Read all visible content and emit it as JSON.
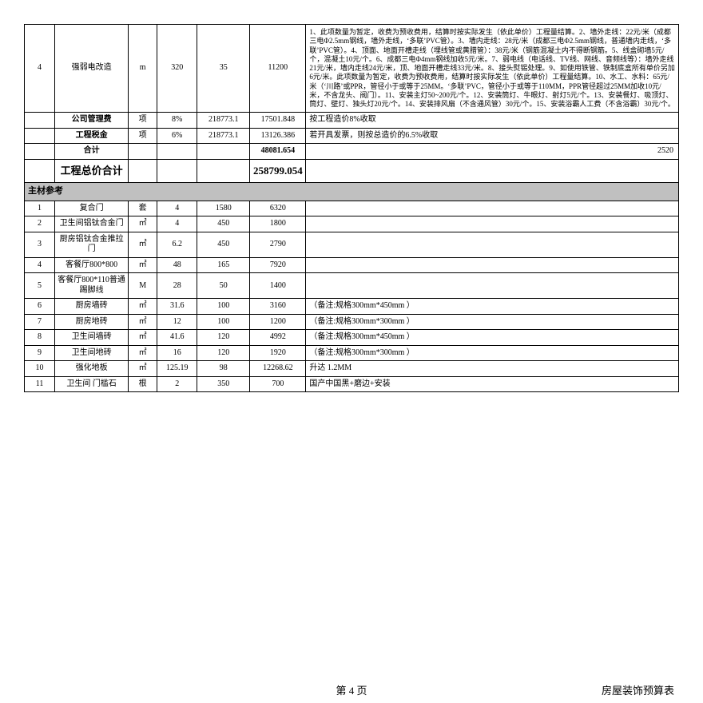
{
  "cols": [
    38,
    92,
    36,
    50,
    66,
    70,
    466
  ],
  "top_rows": [
    {
      "no": "4",
      "name": "强弱电改造",
      "unit": "m",
      "qty": "320",
      "price": "35",
      "amount": "11200",
      "remark": "1、此项数量为暂定，收费为预收费用，结算时按实际发生（依此单价）工程量结算。2、墙外走线：22元/米（成都三电Φ2.5mm钢线，墙外走线，‘多联’PVC管）。3、墙内走线：28元/米（成都三电Φ2.5mm钢线，普通墙内走线，‘多联’PVC管）。4、顶面、地面开槽走线（埋线管或黄腊管）：38元/米（钢筋混凝土内不得断钢筋。5、线盒砌墙5元/个，混凝土10元/个。6、成都三电Φ4mm钢线加收5元/米。7、弱电线（电话线、TV线、网线、音频线等）：墙外走线21元/米，墙内走线24元/米，顶、地面开槽走线33元/米。8、接头熨锡处理。9、如使用铁管、铁制底盒所有单价另加6元/米。此项数量为暂定，收费为预收费用，结算时按实际发生（依此单价）工程量结算。10、水工、水料：65元/米（‘川路’或PPR，管径小于或等于25MM。‘多联’PVC，管径小于或等于110MM，PPR管径超过25MM加收10元/米，不含龙头、阀门）。11、安装主灯50~200元/个。12、安装筒灯、牛眼灯、射灯5元/个。13、安装餐灯、吸顶灯、筒灯、壁灯、独头灯20元/个。14、安装排风扇（不含通风管）30元/个。15、安装浴霸人工费（不含浴霸）30元/个。"
    }
  ],
  "fee_rows": [
    {
      "name": "公司管理费",
      "unit": "项",
      "qty": "8%",
      "price": "218773.1",
      "amount": "17501.848",
      "remark": "按工程造价8%收取",
      "name_bold": true
    },
    {
      "name": "工程税金",
      "unit": "项",
      "qty": "6%",
      "price": "218773.1",
      "amount": "13126.386",
      "remark": "若开具发票，则按总造价的6.5%收取",
      "name_bold": true
    }
  ],
  "sum_rows": [
    {
      "name": "合计",
      "amount": "48081.654",
      "remark_right": "2520"
    },
    {
      "name": "工程总价合计",
      "amount": "258799.054",
      "remark_right": "",
      "big": true
    }
  ],
  "section": "主材参考",
  "material_rows": [
    {
      "no": "1",
      "name": "复合门",
      "unit": "套",
      "qty": "4",
      "price": "1580",
      "amount": "6320",
      "remark": ""
    },
    {
      "no": "2",
      "name": "卫生间铝钛合金门",
      "unit": "㎡",
      "qty": "4",
      "price": "450",
      "amount": "1800",
      "remark": ""
    },
    {
      "no": "3",
      "name": "厨房铝钛合金推拉门",
      "unit": "㎡",
      "qty": "6.2",
      "price": "450",
      "amount": "2790",
      "remark": ""
    },
    {
      "no": "4",
      "name": "客餐厅800*800",
      "unit": "㎡",
      "qty": "48",
      "price": "165",
      "amount": "7920",
      "remark": ""
    },
    {
      "no": "5",
      "name": "客餐厅800*110普通踢脚线",
      "unit": "M",
      "qty": "28",
      "price": "50",
      "amount": "1400",
      "remark": ""
    },
    {
      "no": "6",
      "name": "厨房墙砖",
      "unit": "㎡",
      "qty": "31.6",
      "price": "100",
      "amount": "3160",
      "remark": "（备注:规格300mm*450mm ）"
    },
    {
      "no": "7",
      "name": "厨房地砖",
      "unit": "㎡",
      "qty": "12",
      "price": "100",
      "amount": "1200",
      "remark": "（备注:规格300mm*300mm ）"
    },
    {
      "no": "8",
      "name": "卫生间墙砖",
      "unit": "㎡",
      "qty": "41.6",
      "price": "120",
      "amount": "4992",
      "remark": "（备注:规格300mm*450mm ）"
    },
    {
      "no": "9",
      "name": "卫生间地砖",
      "unit": "㎡",
      "qty": "16",
      "price": "120",
      "amount": "1920",
      "remark": "（备注:规格300mm*300mm ）"
    },
    {
      "no": "10",
      "name": "强化地板",
      "unit": "㎡",
      "qty": "125.19",
      "price": "98",
      "amount": "12268.62",
      "remark": "升达    1.2MM"
    },
    {
      "no": "11",
      "name": "卫生间 门槛石",
      "unit": "根",
      "qty": "2",
      "price": "350",
      "amount": "700",
      "remark": "国产中国黑+磨边+安装"
    }
  ],
  "footer_center": "第 4 页",
  "footer_right": "房屋装饰预算表"
}
